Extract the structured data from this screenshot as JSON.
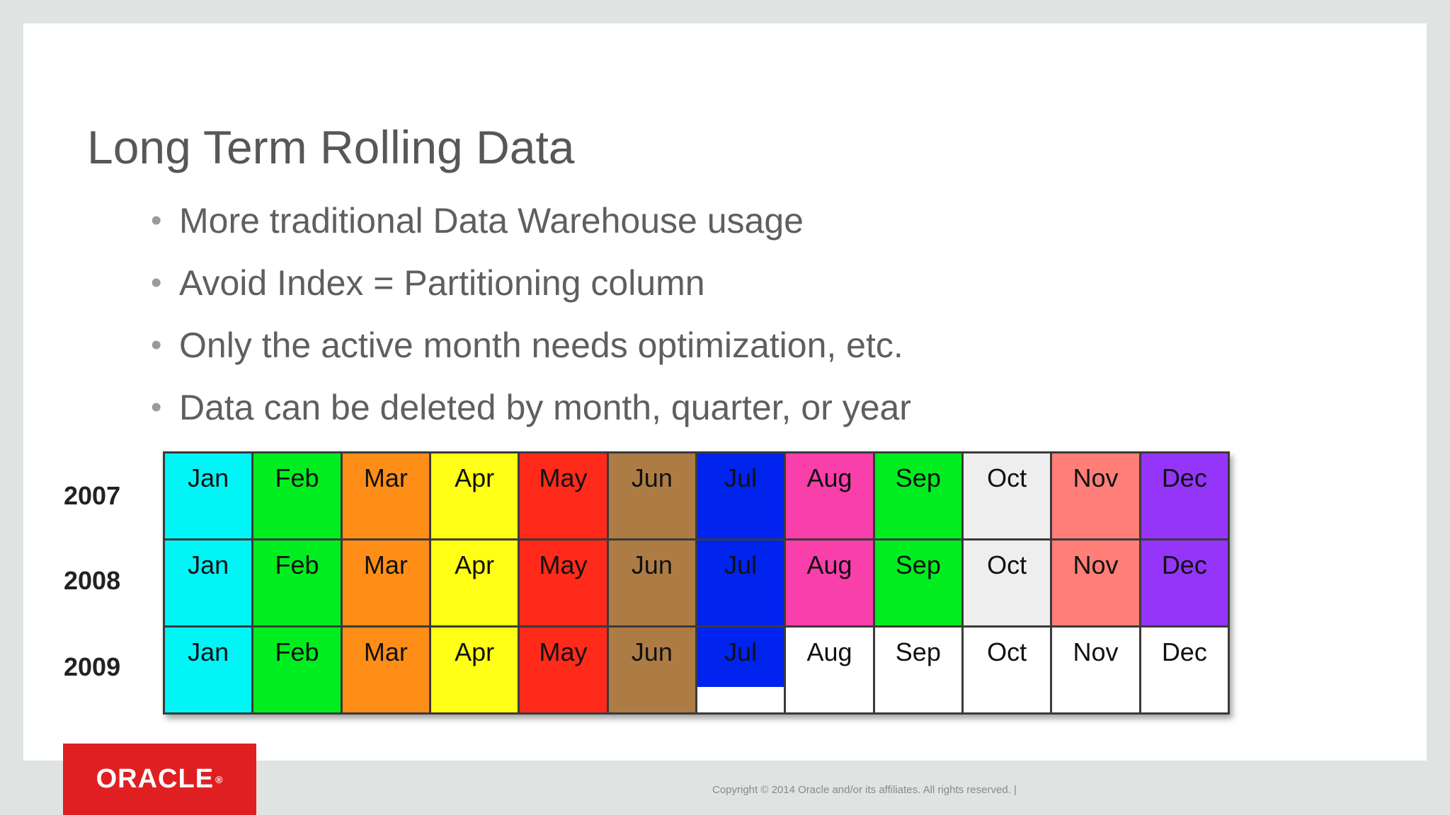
{
  "slide": {
    "title": "Long Term Rolling Data",
    "bullets": [
      "More traditional Data Warehouse usage",
      "Avoid Index = Partitioning column",
      "Only the active month needs optimization, etc.",
      "Data can be deleted by month, quarter, or year"
    ],
    "bullet_glyph": "•"
  },
  "calendar": {
    "months": [
      "Jan",
      "Feb",
      "Mar",
      "Apr",
      "May",
      "Jun",
      "Jul",
      "Aug",
      "Sep",
      "Oct",
      "Nov",
      "Dec"
    ],
    "month_colors": [
      "#00f5f7",
      "#00ee20",
      "#ff8e18",
      "#ffff16",
      "#ff2a1a",
      "#ad7c45",
      "#0023ee",
      "#f93fa9",
      "#00ee20",
      "#eeeeee",
      "#ff7f78",
      "#9435f9"
    ],
    "rows": [
      {
        "year": "2007",
        "filled": [
          1,
          1,
          1,
          1,
          1,
          1,
          1,
          1,
          1,
          1,
          1,
          1
        ]
      },
      {
        "year": "2008",
        "filled": [
          1,
          1,
          1,
          1,
          1,
          1,
          1,
          1,
          1,
          1,
          1,
          1
        ]
      },
      {
        "year": "2009",
        "filled": [
          1,
          1,
          1,
          1,
          1,
          1,
          0.7,
          0,
          0,
          0,
          0,
          0
        ]
      }
    ],
    "empty_color": "#ffffff"
  },
  "footer": {
    "copyright": "Copyright © 2014 Oracle and/or its affiliates. All rights reserved.  |"
  },
  "logo": {
    "text": "ORACLE",
    "trademark": "®",
    "color": "#e01f22"
  }
}
